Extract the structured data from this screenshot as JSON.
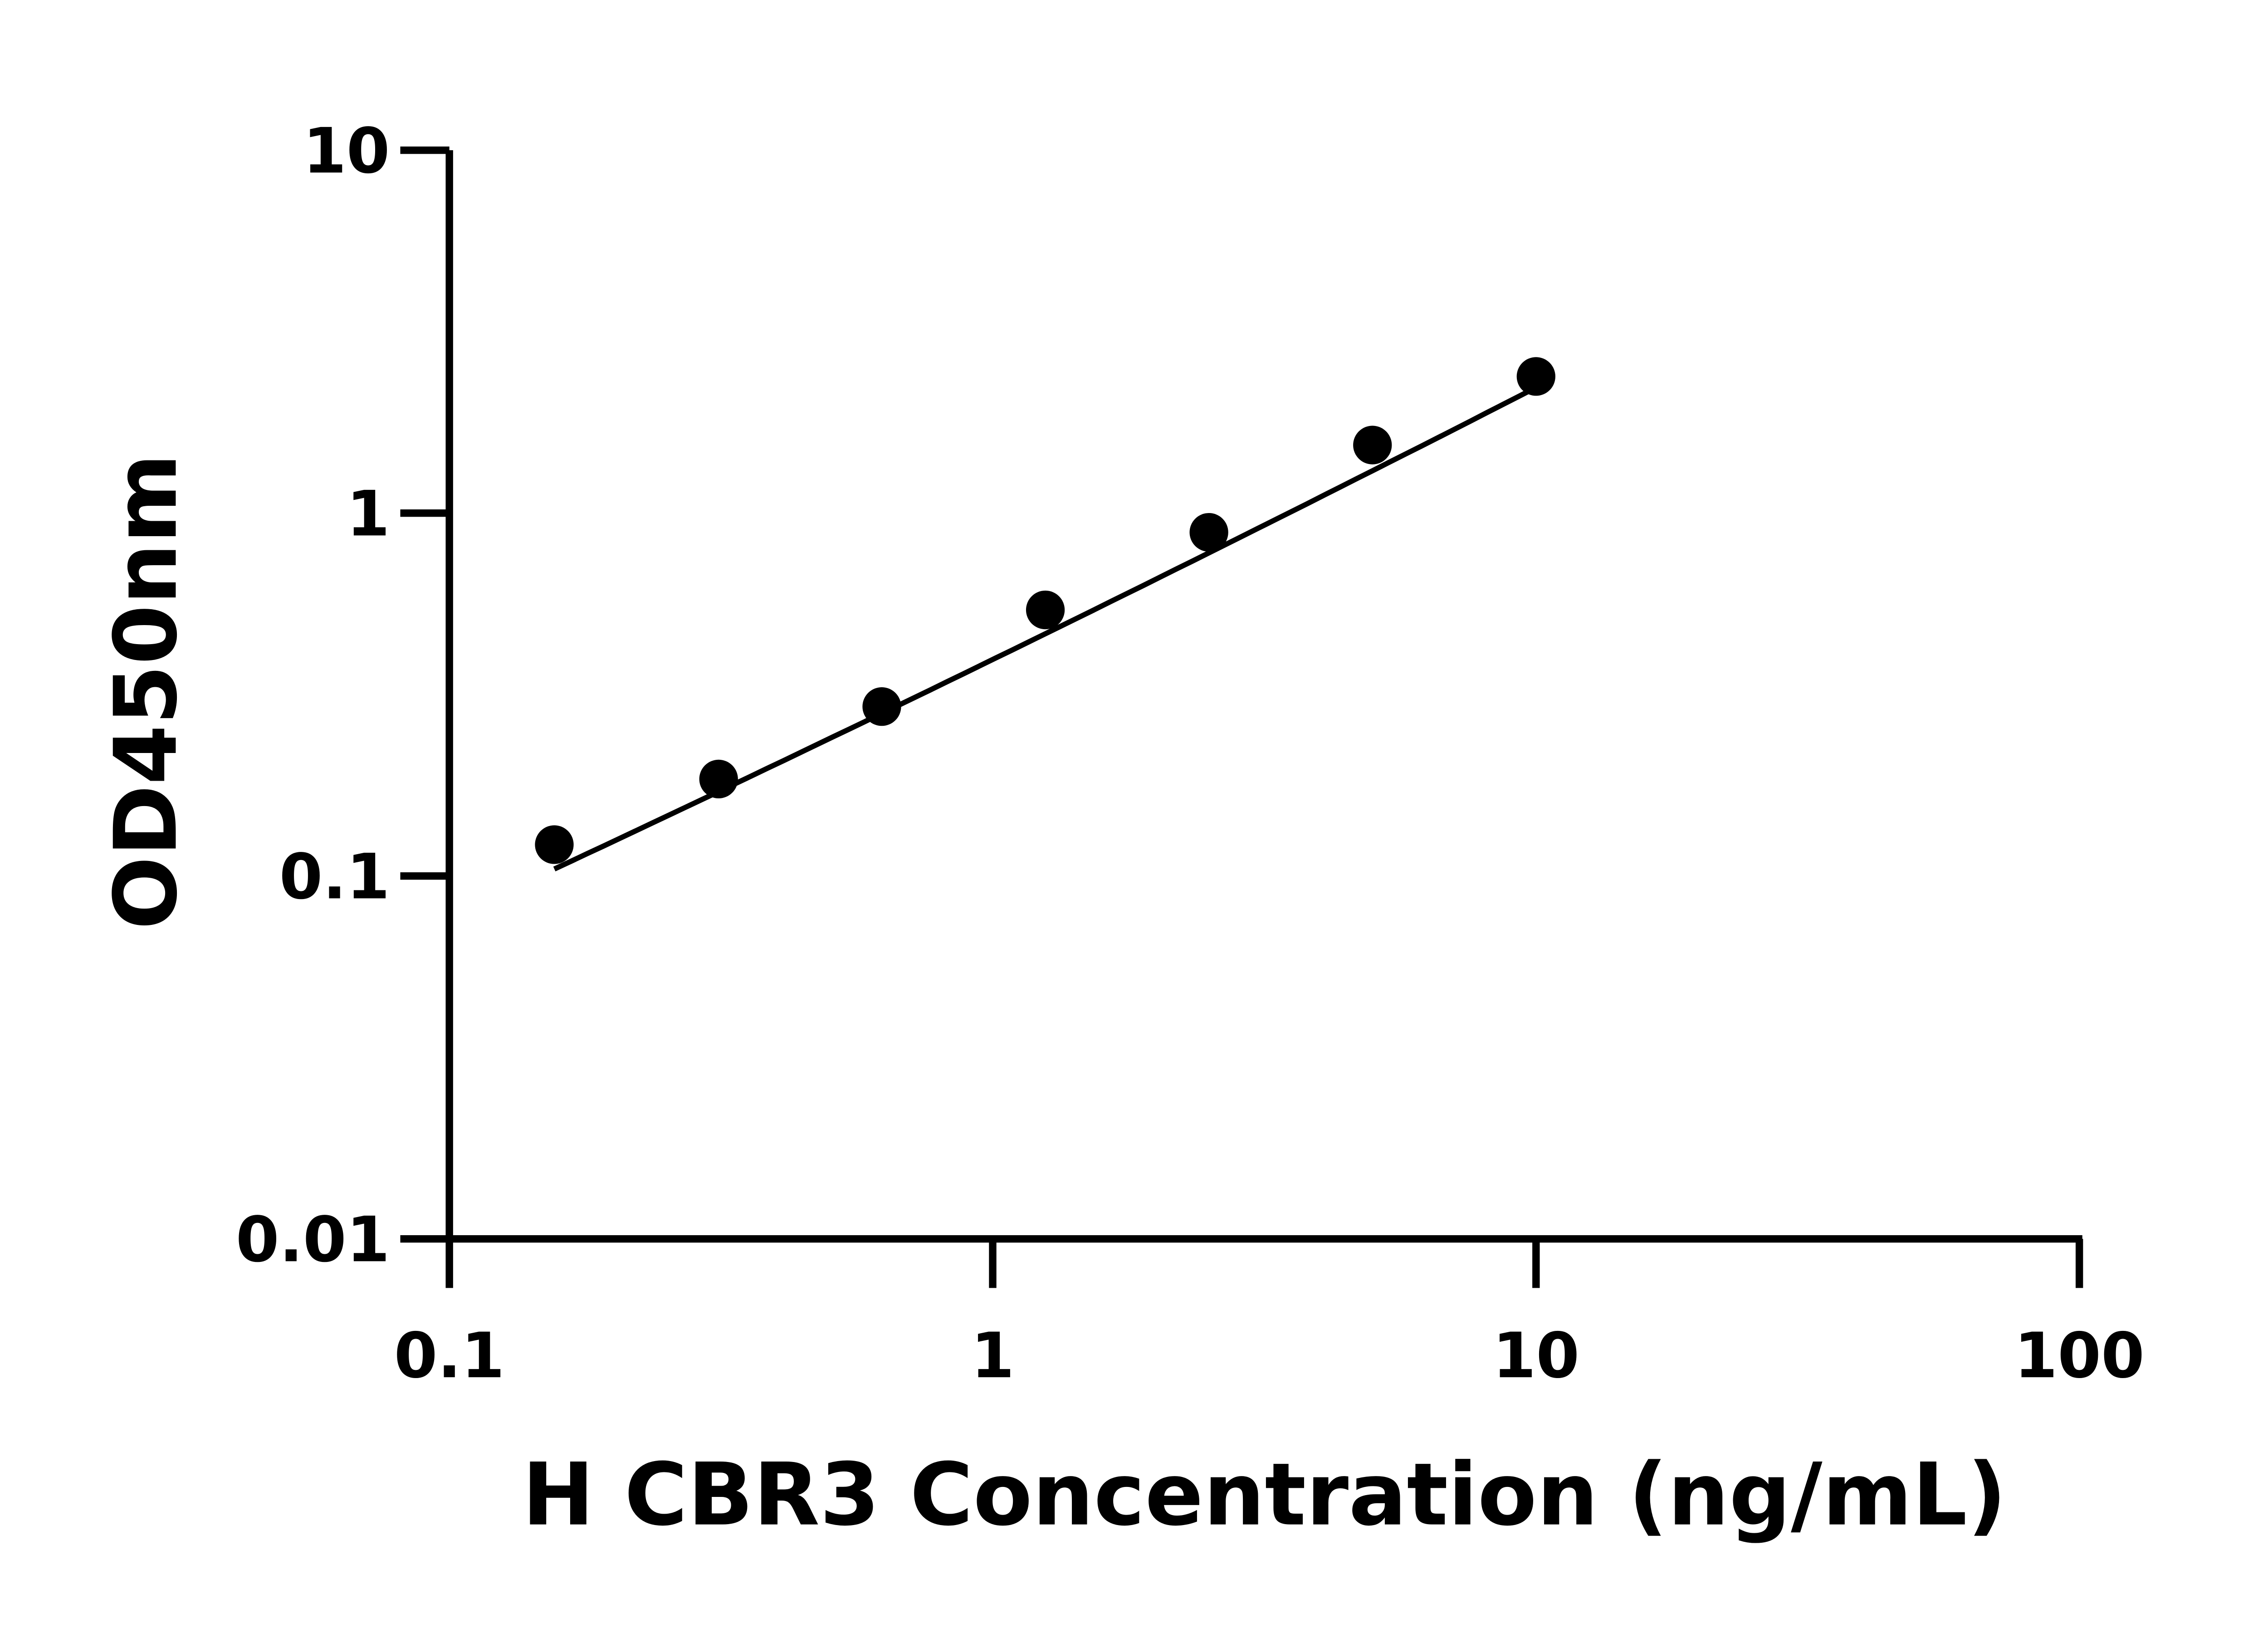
{
  "chart_data": {
    "type": "scatter",
    "title": "",
    "xlabel": "H CBR3 Concentration (ng/mL)",
    "ylabel": "OD450nm",
    "x_scale": "log",
    "y_scale": "log",
    "xlim": [
      0.1,
      100
    ],
    "ylim": [
      0.01,
      10
    ],
    "x_ticks": [
      0.1,
      1,
      10,
      100
    ],
    "x_tick_labels": [
      "0.1",
      "1",
      "10",
      "100"
    ],
    "y_ticks": [
      0.01,
      0.1,
      1,
      10
    ],
    "y_tick_labels": [
      "0.01",
      "0.1",
      "1",
      "10"
    ],
    "grid": false,
    "fit_line": true,
    "marker_color": "#000000",
    "series": [
      {
        "x": [
          0.156,
          0.313,
          0.625,
          1.25,
          2.5,
          5,
          10
        ],
        "y": [
          0.122,
          0.185,
          0.293,
          0.541,
          0.885,
          1.54,
          2.38
        ]
      }
    ]
  }
}
